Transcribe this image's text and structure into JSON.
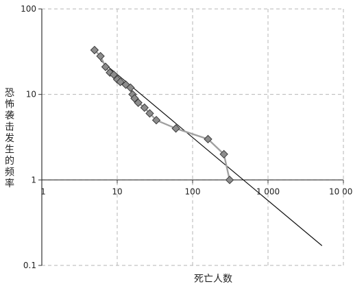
{
  "chart_data": {
    "type": "scatter",
    "xlabel": "死亡人数",
    "ylabel": "恐怖袭击发生的频率",
    "x_scale": "log",
    "y_scale": "log",
    "xlim": [
      1,
      10000
    ],
    "ylim": [
      0.1,
      100
    ],
    "x_ticks": [
      1,
      10,
      100,
      1000,
      10000
    ],
    "x_tick_labels": [
      "1",
      "10",
      "100",
      "1 000",
      "10 000"
    ],
    "y_ticks": [
      0.1,
      1,
      10,
      100
    ],
    "y_tick_labels": [
      "0.1",
      "1",
      "10",
      "100"
    ],
    "grid": true,
    "colors": {
      "marker_fill": "#8c8c8c",
      "marker_stroke": "#3a3a3a",
      "connector": "#a0a0a0",
      "fit_line": "#111111",
      "grid": "#b5b5b5",
      "axis": "#333333"
    },
    "series": [
      {
        "values": [
          [
            5,
            33
          ],
          [
            6,
            28
          ],
          [
            7,
            21
          ],
          [
            8,
            18
          ],
          [
            9,
            17
          ],
          [
            10,
            15
          ],
          [
            11,
            14
          ],
          [
            13,
            13
          ],
          [
            15,
            12
          ],
          [
            16,
            10
          ],
          [
            17,
            9
          ],
          [
            19,
            8
          ],
          [
            23,
            7
          ],
          [
            27,
            6
          ],
          [
            33,
            5
          ],
          [
            60,
            4
          ],
          [
            160,
            3
          ],
          [
            260,
            2
          ],
          [
            310,
            1
          ]
        ]
      }
    ],
    "fit_line": [
      [
        6,
        25
      ],
      [
        5200,
        0.17
      ]
    ]
  }
}
